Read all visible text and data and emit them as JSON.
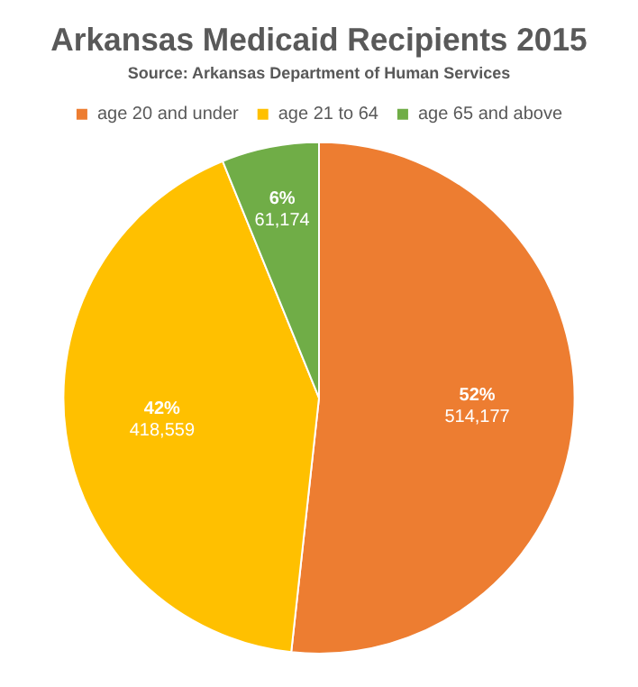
{
  "chart_data": {
    "type": "pie",
    "title": "Arkansas Medicaid Recipients 2015",
    "subtitle": "Source: Arkansas Department of Human Services",
    "categories": [
      "age 20 and under",
      "age 21 to 64",
      "age 65 and above"
    ],
    "values": [
      514177,
      418559,
      61174
    ],
    "colors": [
      "#ed7d31",
      "#ffc000",
      "#70ad47"
    ],
    "value_labels": [
      "52%\n514,177",
      "42%\n418,559",
      "6%\n61,174"
    ],
    "legend": "top"
  }
}
